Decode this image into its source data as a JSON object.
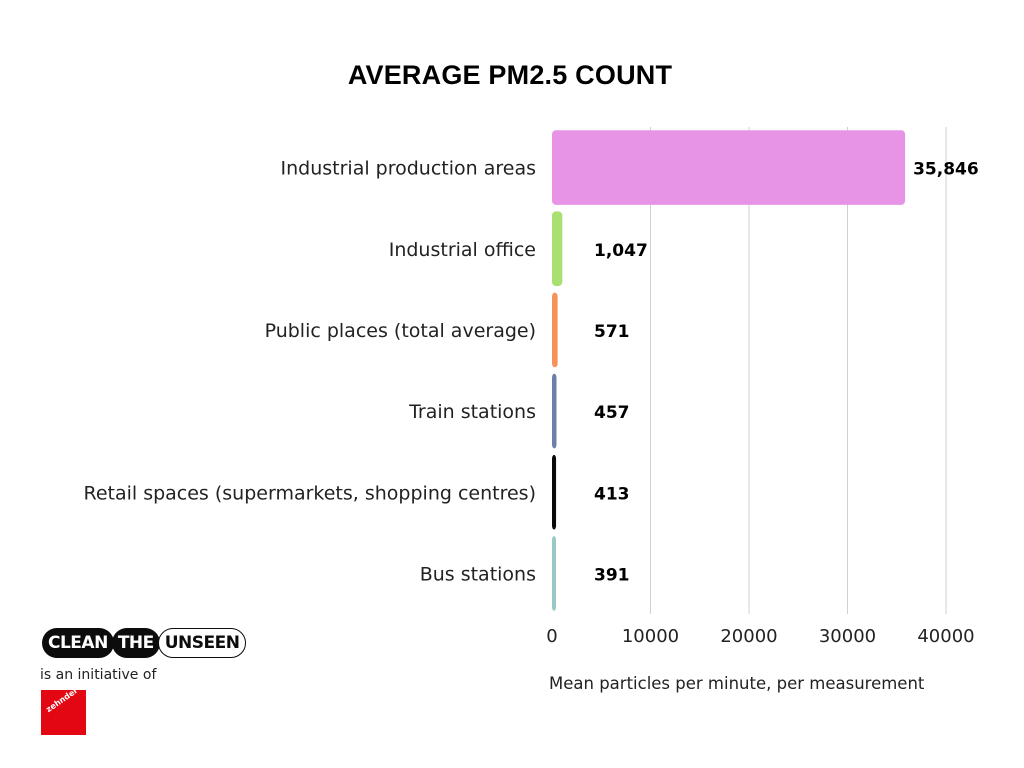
{
  "chart_data": {
    "type": "bar",
    "orientation": "horizontal",
    "title": "AVERAGE PM2.5 COUNT",
    "xlabel": "Mean particles per minute, per measurement",
    "ylabel": "",
    "categories": [
      "Industrial production areas",
      "Industrial office",
      "Public places (total average)",
      "Train stations",
      "Retail spaces (supermarkets, shopping centres)",
      "Bus stations"
    ],
    "values": [
      35846,
      1047,
      571,
      457,
      413,
      391
    ],
    "value_labels": [
      "35,846",
      "1,047",
      "571",
      "457",
      "413",
      "391"
    ],
    "colors": [
      "#e894e6",
      "#a8e071",
      "#f7935a",
      "#6a80aa",
      "#0a0a0a",
      "#98c9c4"
    ],
    "xlim": [
      0,
      40000
    ],
    "x_ticks": [
      0,
      10000,
      20000,
      30000,
      40000
    ],
    "x_tick_labels": [
      "0",
      "10000",
      "20000",
      "30000",
      "40000"
    ],
    "grid": "vertical"
  },
  "branding": {
    "logo_words": [
      "CLEAN",
      "THE",
      "UNSEEN"
    ],
    "initiative_text": "is an initiative of",
    "partner_logo_text": "zehnder",
    "partner_color": "#e30613"
  }
}
